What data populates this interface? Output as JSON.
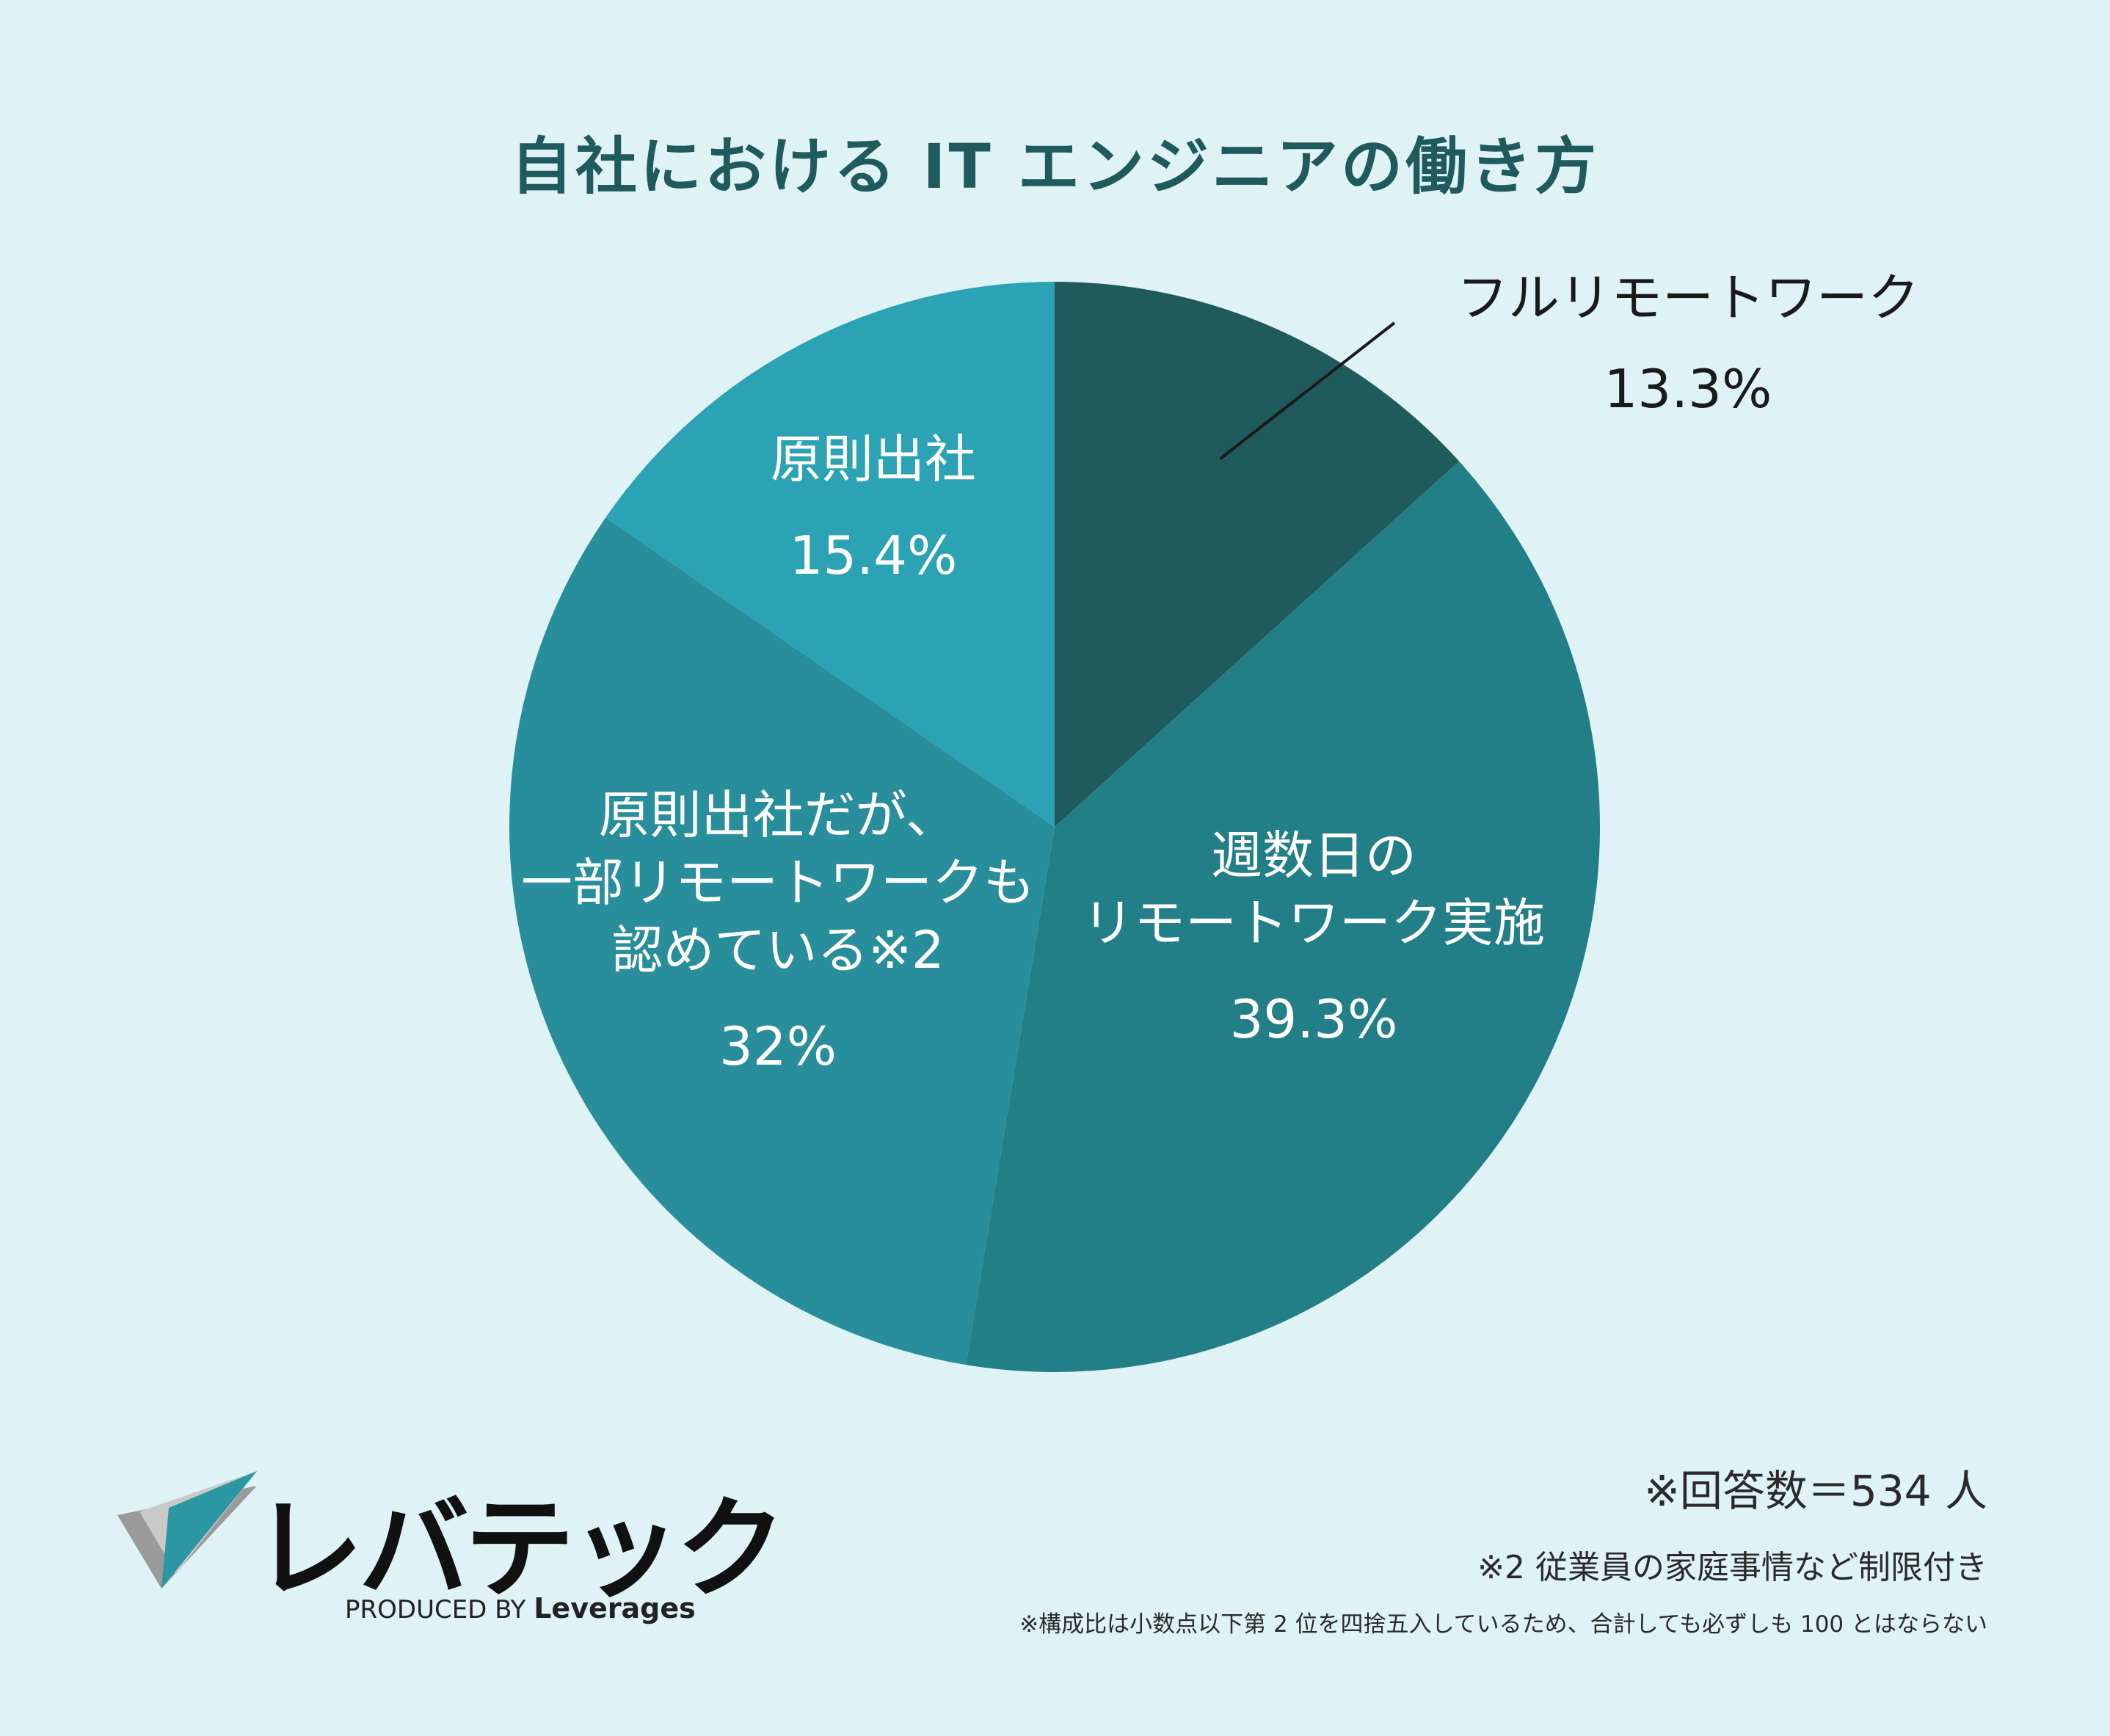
{
  "title": "自社における IT エンジニアの働き方",
  "chart_data": {
    "type": "pie",
    "title": "自社における IT エンジニアの働き方",
    "slices": [
      {
        "lines": [
          "フルリモートワーク"
        ],
        "value": 13.3,
        "label": "13.3%",
        "color": "#1f5a5c",
        "text_color": "#1a1a1a"
      },
      {
        "lines": [
          "週数日の",
          "リモートワーク実施"
        ],
        "value": 39.3,
        "label": "39.3%",
        "color": "#237f87",
        "text_color": "#ffffff"
      },
      {
        "lines": [
          "原則出社だが、",
          "一部リモートワークも",
          "認めている※2"
        ],
        "value": 32,
        "label": "32%",
        "color": "#288e9b",
        "text_color": "#ffffff"
      },
      {
        "lines": [
          "原則出社"
        ],
        "value": 15.4,
        "label": "15.4%",
        "color": "#2ba3b4",
        "text_color": "#ffffff"
      }
    ]
  },
  "notes": {
    "respondents": "※回答数＝534 人",
    "note2": "※2 従業員の家庭事情など制限付き",
    "rounding": "※構成比は小数点以下第 2 位を四捨五入しているため、合計しても必ずしも 100 とはならない"
  },
  "logo": {
    "text": "レバテック",
    "tagline_prefix": "PRODUCED BY",
    "tagline_brand": "Leverages"
  }
}
